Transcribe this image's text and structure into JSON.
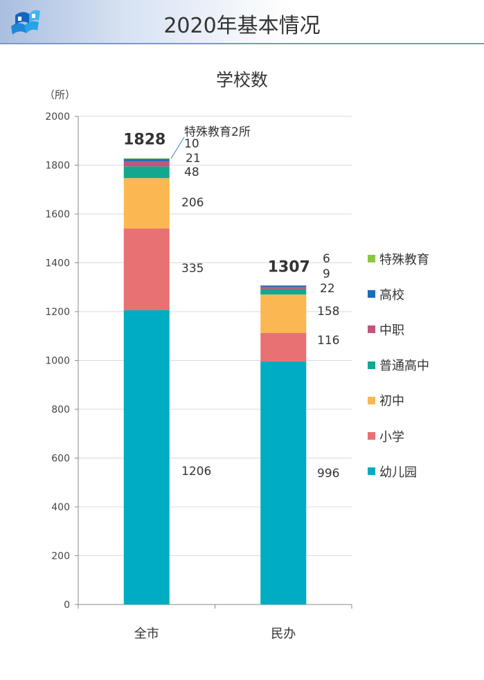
{
  "header": {
    "title": "2020年基本情况"
  },
  "chart_data": {
    "type": "stacked-bar",
    "title": "学校数",
    "ylabel": "（所）",
    "ylim": [
      0,
      2000
    ],
    "yticks": [
      0,
      200,
      400,
      600,
      800,
      1000,
      1200,
      1400,
      1600,
      1800,
      2000
    ],
    "categories": [
      "全市",
      "民办"
    ],
    "totals": [
      1828,
      1307
    ],
    "series": [
      {
        "name": "幼儿园",
        "color": "#00acc1",
        "values": [
          1206,
          996
        ]
      },
      {
        "name": "小学",
        "color": "#e87173",
        "values": [
          335,
          116
        ]
      },
      {
        "name": "初中",
        "color": "#fbb751",
        "values": [
          206,
          158
        ]
      },
      {
        "name": "普通高中",
        "color": "#11a88e",
        "values": [
          48,
          22
        ]
      },
      {
        "name": "中职",
        "color": "#c2557e",
        "values": [
          21,
          9
        ]
      },
      {
        "name": "高校",
        "color": "#1c6bb8",
        "values": [
          10,
          6
        ]
      },
      {
        "name": "特殊教育",
        "color": "#8cc63f",
        "values": [
          2,
          0
        ]
      }
    ],
    "data_labels": [
      [
        "1206",
        "335",
        "206",
        "48",
        "21",
        "10",
        "特殊教育2所"
      ],
      [
        "996",
        "116",
        "158",
        "22",
        "9",
        "6",
        ""
      ]
    ],
    "legend": [
      "特殊教育",
      "高校",
      "中职",
      "普通高中",
      "初中",
      "小学",
      "幼儿园"
    ],
    "legend_position": "right"
  }
}
